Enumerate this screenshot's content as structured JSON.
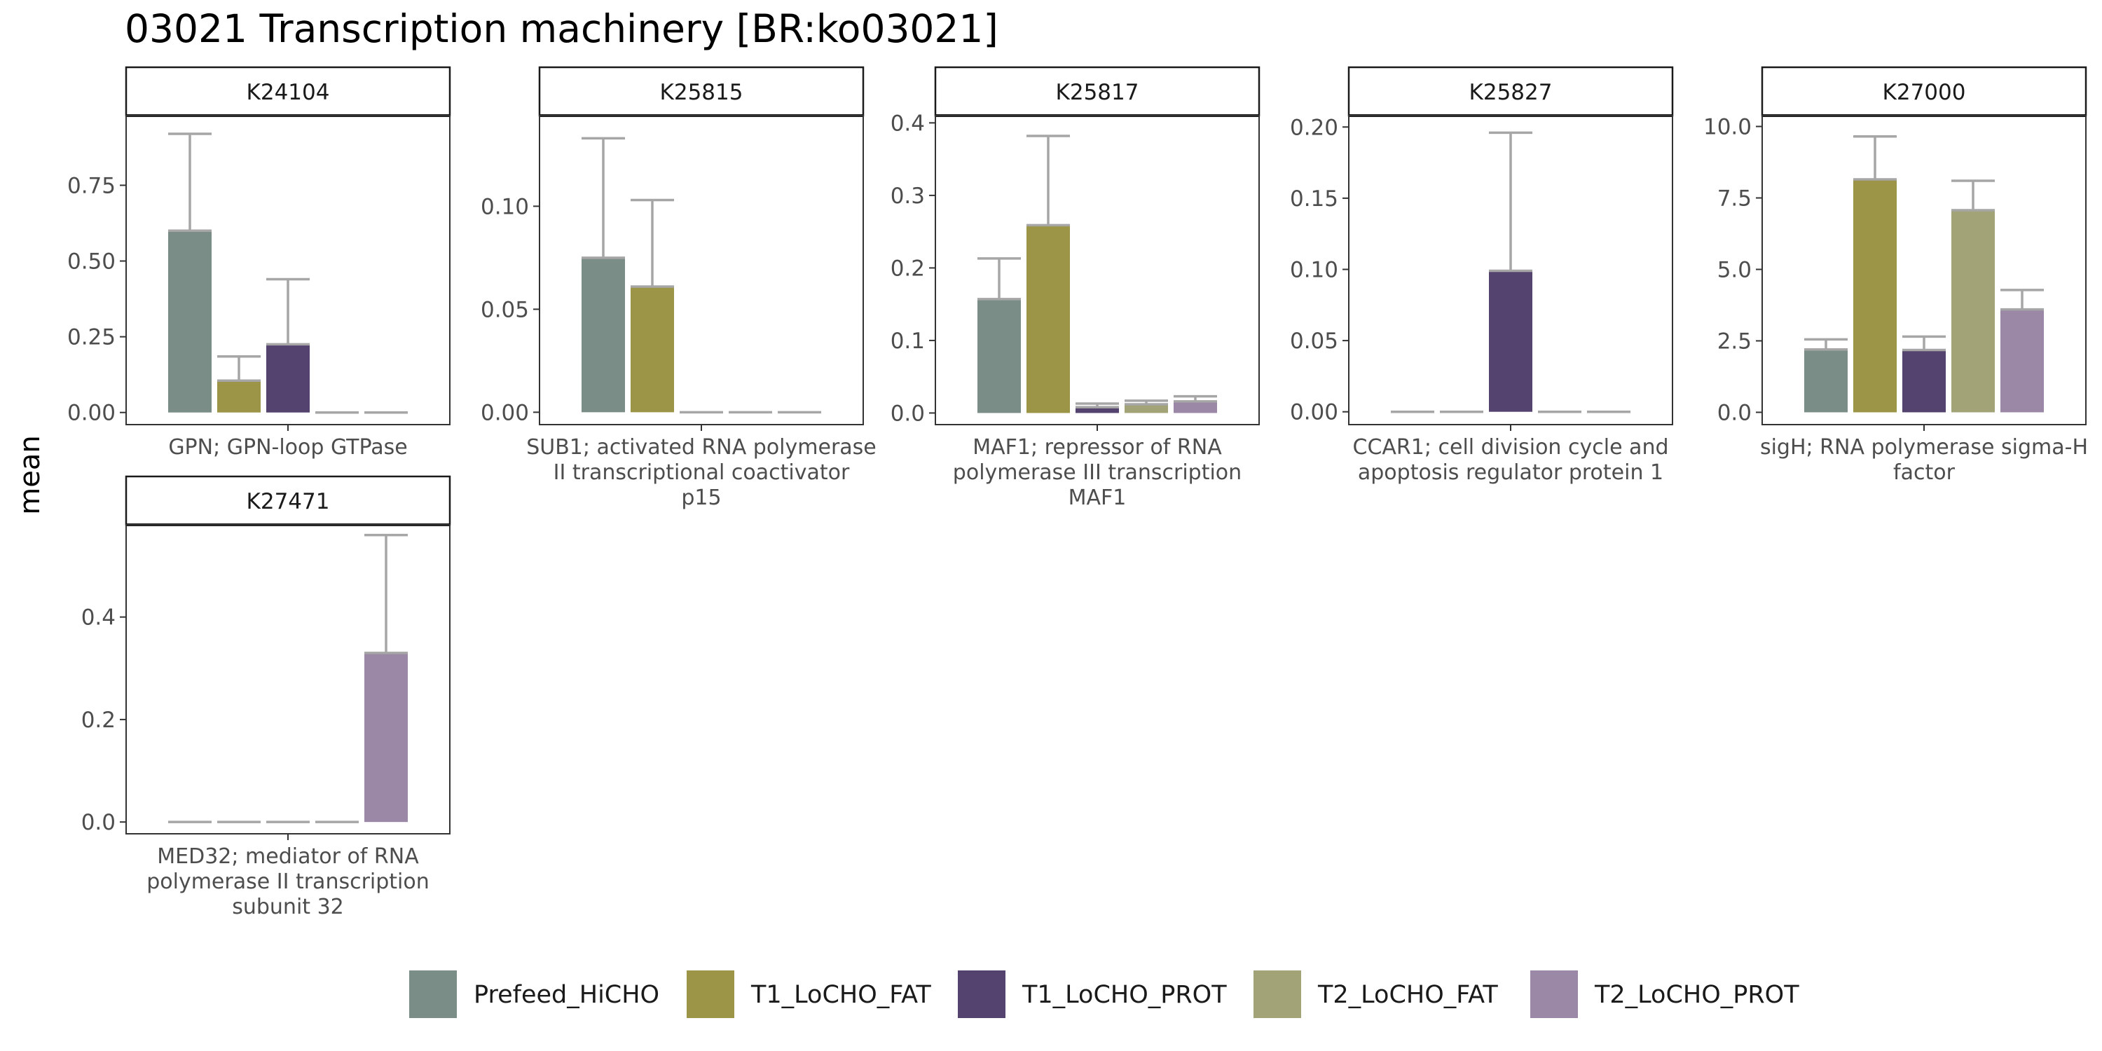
{
  "chart_data": {
    "type": "bar",
    "title": "03021 Transcription machinery [BR:ko03021]",
    "ylabel": "mean",
    "series_names": [
      "Prefeed_HiCHO",
      "T1_LoCHO_FAT",
      "T1_LoCHO_PROT",
      "T2_LoCHO_FAT",
      "T2_LoCHO_PROT"
    ],
    "colors": [
      "#7a8e87",
      "#9c9447",
      "#54426f",
      "#a2a477",
      "#9a88a6"
    ],
    "legend_position": "bottom",
    "grid": false,
    "panels": [
      {
        "id": "K24104",
        "category_lines": [
          "GPN; GPN-loop GTPase"
        ],
        "ylim": [
          -0.04,
          0.98
        ],
        "ticks": [
          0.0,
          0.25,
          0.5,
          0.75
        ],
        "tick_labels": [
          "0.00",
          "0.25",
          "0.50",
          "0.75"
        ],
        "values": [
          0.6,
          0.105,
          0.225,
          0.0,
          0.0
        ],
        "errors": [
          0.92,
          0.185,
          0.44,
          0.0,
          0.0
        ]
      },
      {
        "id": "K25815",
        "category_lines": [
          "SUB1; activated RNA polymerase",
          "II transcriptional coactivator",
          "p15"
        ],
        "ylim": [
          -0.006,
          0.144
        ],
        "ticks": [
          0.0,
          0.05,
          0.1
        ],
        "tick_labels": [
          "0.00",
          "0.05",
          "0.10"
        ],
        "values": [
          0.075,
          0.061,
          0.0,
          0.0,
          0.0
        ],
        "errors": [
          0.133,
          0.103,
          0.0,
          0.0,
          0.0
        ]
      },
      {
        "id": "K25817",
        "category_lines": [
          "MAF1; repressor of RNA",
          "polymerase III transcription",
          "MAF1"
        ],
        "ylim": [
          -0.016,
          0.41
        ],
        "ticks": [
          0.0,
          0.1,
          0.2,
          0.3,
          0.4
        ],
        "tick_labels": [
          "0.0",
          "0.1",
          "0.2",
          "0.3",
          "0.4"
        ],
        "values": [
          0.157,
          0.259,
          0.008,
          0.012,
          0.016
        ],
        "errors": [
          0.213,
          0.382,
          0.013,
          0.017,
          0.023
        ]
      },
      {
        "id": "K25827",
        "category_lines": [
          "CCAR1; cell division cycle and",
          "apoptosis regulator protein 1"
        ],
        "ylim": [
          -0.009,
          0.208
        ],
        "ticks": [
          0.0,
          0.05,
          0.1,
          0.15,
          0.2
        ],
        "tick_labels": [
          "0.00",
          "0.05",
          "0.10",
          "0.15",
          "0.20"
        ],
        "values": [
          0.0,
          0.0,
          0.099,
          0.0,
          0.0
        ],
        "errors": [
          0.0,
          0.0,
          0.196,
          0.0,
          0.0
        ]
      },
      {
        "id": "K27000",
        "category_lines": [
          "sigH; RNA polymerase sigma-H",
          "factor"
        ],
        "ylim": [
          -0.43,
          10.38
        ],
        "ticks": [
          0.0,
          2.5,
          5.0,
          7.5,
          10.0
        ],
        "tick_labels": [
          "0.0",
          "2.5",
          "5.0",
          "7.5",
          "10.0"
        ],
        "values": [
          2.2,
          8.15,
          2.18,
          7.07,
          3.6
        ],
        "errors": [
          2.55,
          9.65,
          2.65,
          8.1,
          4.28
        ]
      },
      {
        "id": "K27471",
        "category_lines": [
          "MED32; mediator of RNA",
          "polymerase II transcription",
          "subunit 32"
        ],
        "ylim": [
          -0.023,
          0.58
        ],
        "ticks": [
          0.0,
          0.2,
          0.4
        ],
        "tick_labels": [
          "0.0",
          "0.2",
          "0.4"
        ],
        "values": [
          0.0,
          0.0,
          0.0,
          0.0,
          0.33
        ],
        "errors": [
          0.0,
          0.0,
          0.0,
          0.0,
          0.56
        ]
      }
    ]
  }
}
